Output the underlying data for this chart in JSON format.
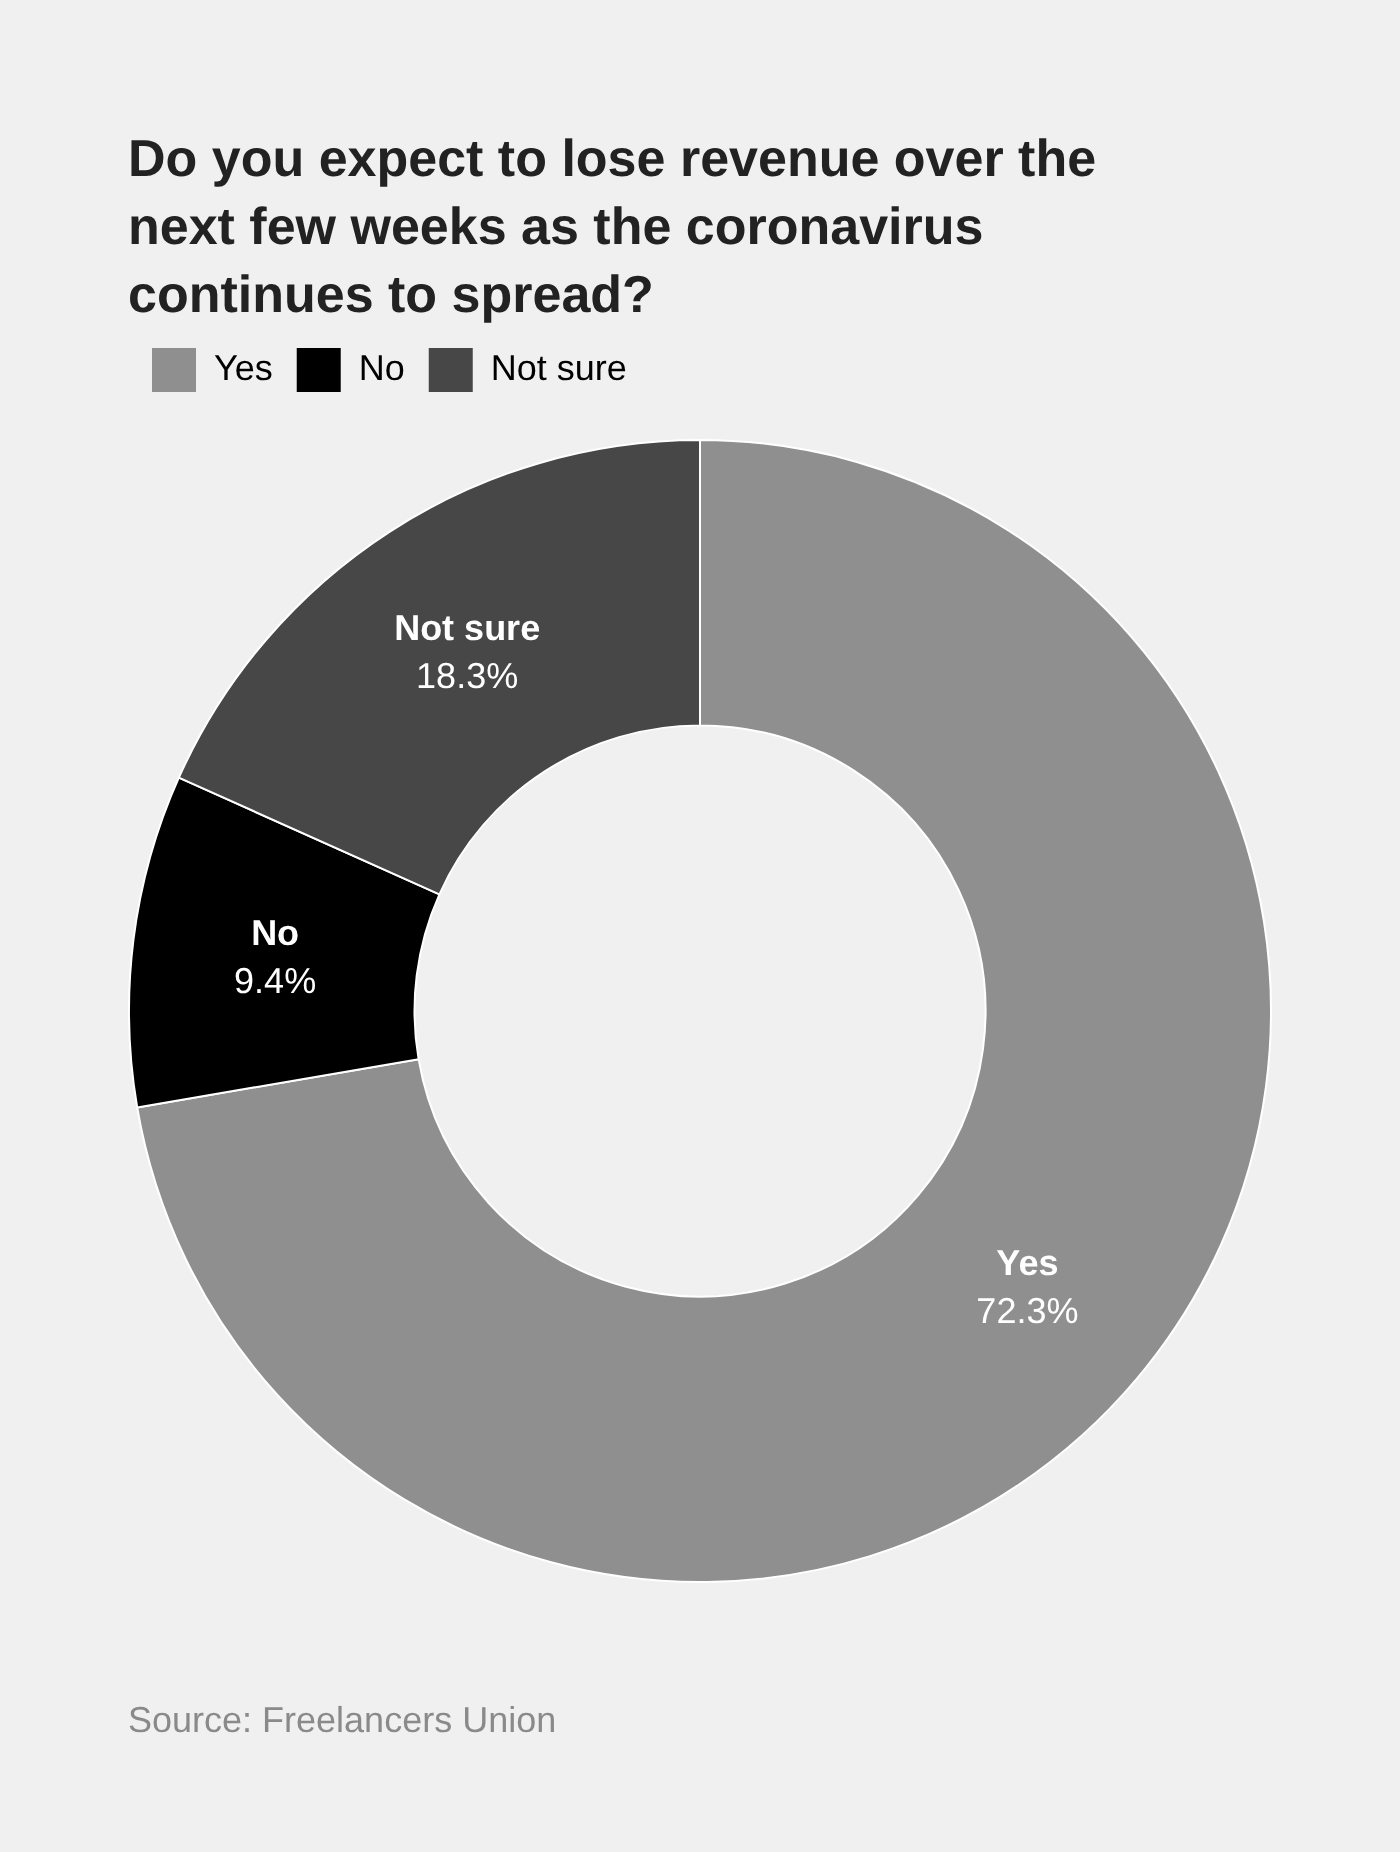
{
  "chart_data": {
    "type": "donut",
    "title": "Do you expect to lose revenue over the next few weeks as the coronavirus continues to spread?",
    "categories": [
      "Yes",
      "No",
      "Not sure"
    ],
    "values": [
      72.3,
      9.4,
      18.3
    ],
    "value_labels": [
      "72.3%",
      "9.4%",
      "18.3%"
    ],
    "colors": [
      "#8f8f8f",
      "#000000",
      "#474747"
    ],
    "legend": "top left",
    "annotations": [
      "Source: Freelancers Union"
    ]
  }
}
